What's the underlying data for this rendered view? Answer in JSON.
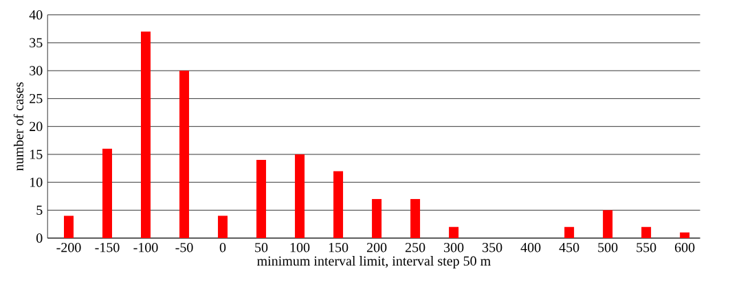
{
  "chart_data": {
    "type": "bar",
    "xlabel": "minimum interval limit, interval step 50 m",
    "ylabel": "number of cases",
    "categories": [
      "-200",
      "-150",
      "-100",
      "-50",
      "0",
      "50",
      "100",
      "150",
      "200",
      "250",
      "300",
      "350",
      "400",
      "450",
      "500",
      "550",
      "600"
    ],
    "values": [
      4,
      16,
      37,
      30,
      4,
      14,
      15,
      12,
      7,
      7,
      2,
      0,
      0,
      2,
      5,
      2,
      1
    ],
    "color": "#ff0000",
    "ylim": [
      0,
      40
    ],
    "yticks": [
      0,
      5,
      10,
      15,
      20,
      25,
      30,
      35,
      40
    ],
    "grid": "y"
  }
}
